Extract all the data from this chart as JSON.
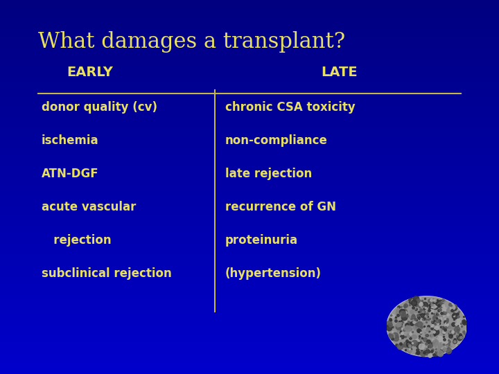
{
  "title": "What damages a transplant?",
  "title_color": "#e8e060",
  "title_fontsize": 22,
  "bg_color": "#0000aa",
  "text_color": "#e8e060",
  "header_left": "EARLY",
  "header_right": "LATE",
  "header_fontsize": 14,
  "content_fontsize": 12,
  "left_items": [
    "donor quality (cv)",
    "ischemia",
    "ATN-DGF",
    "acute vascular",
    "   rejection",
    "subclinical rejection"
  ],
  "right_items": [
    "chronic CSA toxicity",
    "non-compliance",
    "late rejection",
    "recurrence of GN",
    "proteinuria",
    "(hypertension)"
  ],
  "divider_color": "#c8b840",
  "figsize": [
    7.2,
    5.4
  ],
  "dpi": 100
}
